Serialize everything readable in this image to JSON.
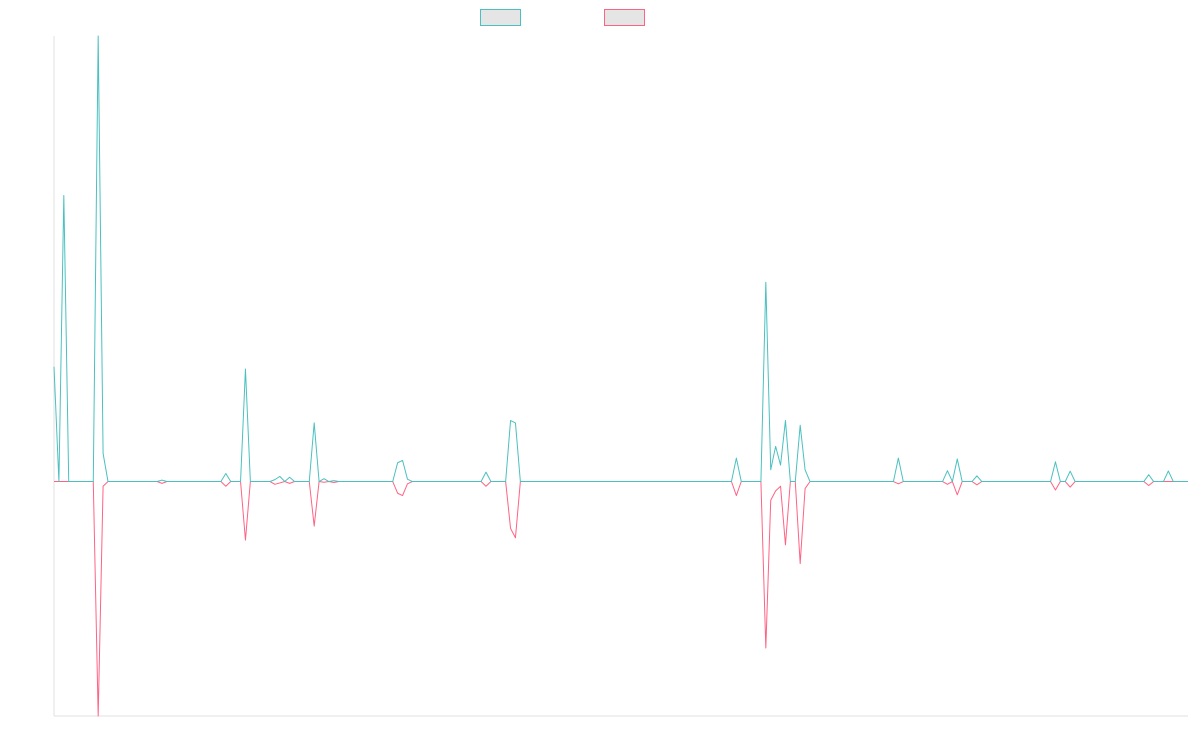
{
  "chart_data": {
    "type": "line",
    "title": "",
    "xlabel": "",
    "ylabel": "",
    "grid": false,
    "legend_position": "top-center",
    "x_count": 232,
    "ylim": [
      -100,
      190
    ],
    "series": [
      {
        "name": "",
        "color": "#4bc0c0",
        "fill": "#e5e5e5",
        "points": [
          [
            0,
            49
          ],
          [
            1,
            0
          ],
          [
            2,
            0
          ],
          [
            3,
            0
          ],
          [
            4,
            0
          ],
          [
            5,
            0
          ],
          [
            6,
            0
          ],
          [
            7,
            0
          ],
          [
            8,
            0
          ],
          [
            9,
            0
          ],
          [
            10,
            0
          ],
          [
            11,
            0
          ],
          [
            12,
            0
          ],
          [
            13,
            0
          ],
          [
            14,
            0
          ],
          [
            15,
            0
          ],
          [
            16,
            0
          ],
          [
            17,
            0
          ],
          [
            18,
            0
          ],
          [
            19,
            0
          ],
          [
            20,
            0
          ],
          [
            21,
            0
          ],
          [
            22,
            0
          ],
          [
            23,
            0
          ],
          [
            24,
            0
          ],
          [
            25,
            0
          ],
          [
            26,
            0
          ],
          [
            27,
            0
          ],
          [
            28,
            0
          ],
          [
            29,
            0
          ],
          [
            30,
            0
          ],
          [
            31,
            0
          ],
          [
            32,
            0
          ],
          [
            33,
            0
          ],
          [
            34,
            0
          ],
          [
            35,
            0
          ],
          [
            36,
            0
          ],
          [
            37,
            0
          ],
          [
            38,
            0
          ],
          [
            39,
            0
          ],
          [
            40,
            0
          ],
          [
            41,
            0
          ],
          [
            42,
            0
          ],
          [
            43,
            0
          ],
          [
            44,
            0
          ],
          [
            45,
            0
          ],
          [
            46,
            0
          ],
          [
            47,
            0
          ],
          [
            48,
            0
          ],
          [
            49,
            0
          ],
          [
            50,
            0
          ]
        ]
      },
      {
        "name": "",
        "color": "#ff6384",
        "fill": "#e5e5e5",
        "points": [
          [
            0,
            0
          ],
          [
            1,
            0
          ],
          [
            2,
            0
          ],
          [
            3,
            0
          ],
          [
            4,
            0
          ],
          [
            5,
            0
          ],
          [
            6,
            0
          ],
          [
            7,
            0
          ],
          [
            8,
            0
          ],
          [
            9,
            0
          ],
          [
            10,
            0
          ],
          [
            11,
            0
          ],
          [
            12,
            0
          ],
          [
            13,
            0
          ],
          [
            14,
            0
          ],
          [
            15,
            0
          ],
          [
            16,
            0
          ],
          [
            17,
            0
          ],
          [
            18,
            0
          ],
          [
            19,
            0
          ],
          [
            20,
            0
          ],
          [
            21,
            0
          ],
          [
            22,
            0
          ],
          [
            23,
            0
          ],
          [
            24,
            0
          ],
          [
            25,
            0
          ],
          [
            26,
            0
          ],
          [
            27,
            0
          ],
          [
            28,
            0
          ],
          [
            29,
            0
          ],
          [
            30,
            0
          ],
          [
            31,
            0
          ],
          [
            32,
            0
          ],
          [
            33,
            0
          ],
          [
            34,
            0
          ],
          [
            35,
            0
          ],
          [
            36,
            0
          ],
          [
            37,
            0
          ],
          [
            38,
            0
          ],
          [
            39,
            0
          ],
          [
            40,
            0
          ],
          [
            41,
            0
          ],
          [
            42,
            0
          ],
          [
            43,
            0
          ],
          [
            44,
            0
          ],
          [
            45,
            0
          ],
          [
            46,
            0
          ],
          [
            47,
            0
          ],
          [
            48,
            0
          ],
          [
            49,
            0
          ],
          [
            50,
            0
          ]
        ]
      }
    ],
    "spikes": [
      {
        "x": 2,
        "a": 122,
        "b": 0
      },
      {
        "x": 9,
        "a": 190,
        "b": -100
      },
      {
        "x": 10,
        "a": 12,
        "b": -2
      },
      {
        "x": 22,
        "a": 0.6,
        "b": -0.8
      },
      {
        "x": 35,
        "a": 3.4,
        "b": -2
      },
      {
        "x": 39,
        "a": 48,
        "b": -25
      },
      {
        "x": 45,
        "a": 0.8,
        "b": -1.2
      },
      {
        "x": 46,
        "a": 2.2,
        "b": -0.6
      },
      {
        "x": 48,
        "a": 1.8,
        "b": -0.8
      },
      {
        "x": 53,
        "a": 25,
        "b": -19
      },
      {
        "x": 55,
        "a": 1.2,
        "b": -0.3
      },
      {
        "x": 57,
        "a": 0.4,
        "b": -0.4
      },
      {
        "x": 70,
        "a": 8,
        "b": -5
      },
      {
        "x": 71,
        "a": 9,
        "b": -6
      },
      {
        "x": 72,
        "a": 1,
        "b": -1
      },
      {
        "x": 88,
        "a": 4,
        "b": -2
      },
      {
        "x": 93,
        "a": 26,
        "b": -20
      },
      {
        "x": 94,
        "a": 25,
        "b": -24
      },
      {
        "x": 139,
        "a": 10,
        "b": -6
      },
      {
        "x": 145,
        "a": 85,
        "b": -71
      },
      {
        "x": 146,
        "a": 5,
        "b": -8
      },
      {
        "x": 147,
        "a": 15,
        "b": -4
      },
      {
        "x": 148,
        "a": 7,
        "b": -2
      },
      {
        "x": 149,
        "a": 26,
        "b": -27
      },
      {
        "x": 152,
        "a": 24,
        "b": -35
      },
      {
        "x": 153,
        "a": 5,
        "b": -3
      },
      {
        "x": 172,
        "a": 10,
        "b": -1
      },
      {
        "x": 182,
        "a": 4.6,
        "b": -1.2
      },
      {
        "x": 184,
        "a": 9.6,
        "b": -5.7
      },
      {
        "x": 188,
        "a": 2.4,
        "b": -1.4
      },
      {
        "x": 204,
        "a": 8.4,
        "b": -3.6
      },
      {
        "x": 207,
        "a": 4.4,
        "b": -2.4
      },
      {
        "x": 223,
        "a": 2.9,
        "b": -1.7
      },
      {
        "x": 227,
        "a": 4.5,
        "b": 0
      }
    ]
  }
}
